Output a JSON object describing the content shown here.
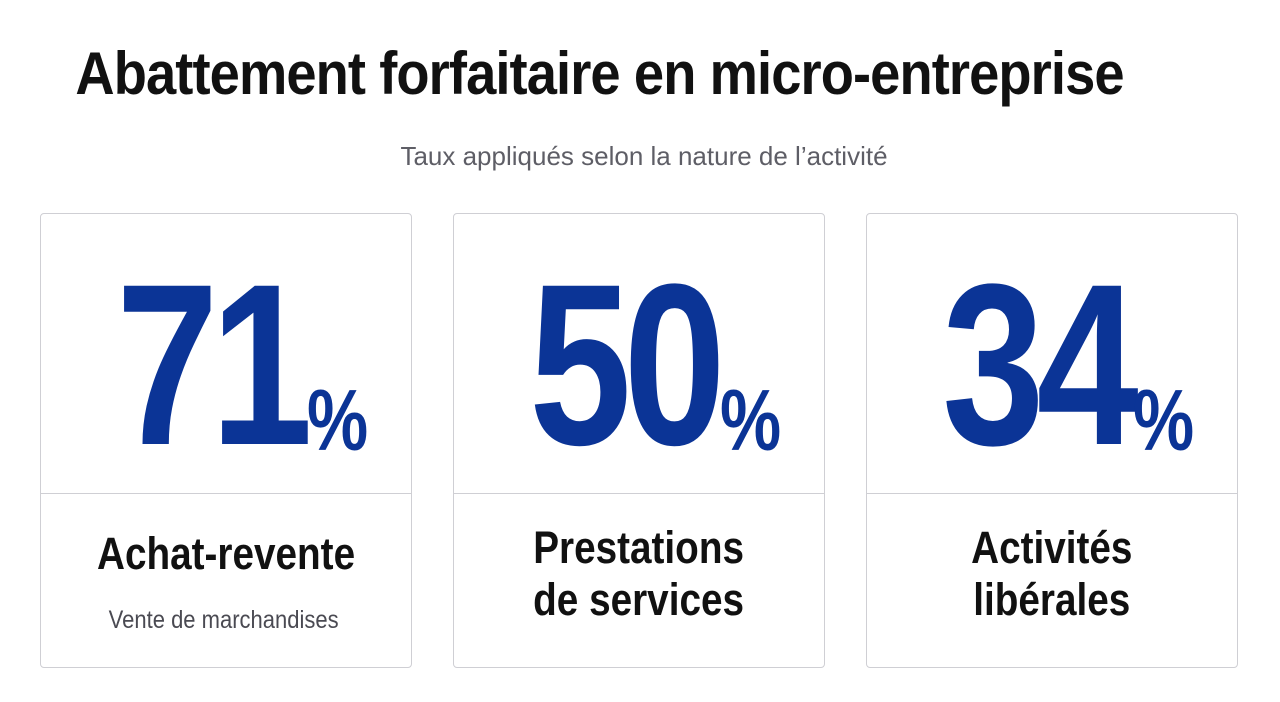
{
  "header": {
    "title": "Abattement forfaitaire en micro-entreprise",
    "subtitle": "Taux appliqués selon la nature de l’activité"
  },
  "cards": [
    {
      "rate": "71",
      "unit": "%",
      "label": "Achat-revente",
      "detail": "Vente de marchandises"
    },
    {
      "rate": "50",
      "unit": "%",
      "label": "Prestations\nde services",
      "detail": ""
    },
    {
      "rate": "34",
      "unit": "%",
      "label": "Activités\nlibérales",
      "detail": ""
    }
  ],
  "colors": {
    "accent": "#0b3496",
    "text": "#111111",
    "muted": "#5e5e66",
    "border": "#cfcfd4"
  }
}
